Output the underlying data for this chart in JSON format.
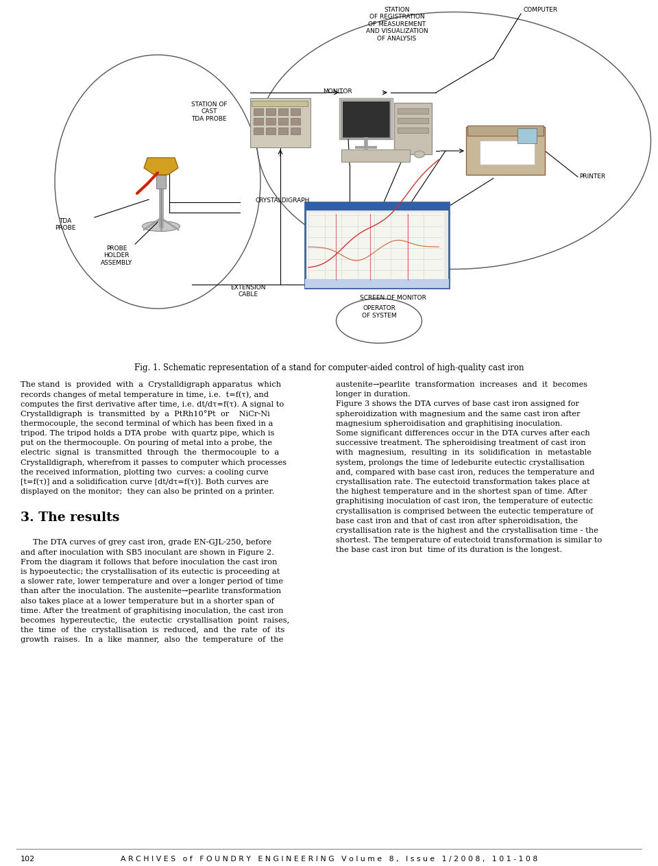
{
  "page_width": 9.6,
  "page_height": 12.63,
  "bg_color": "#ffffff",
  "fig_caption": "Fig. 1. Schematic representation of a stand for computer-aided control of high-quality cast iron",
  "left_col_text": [
    "The stand  is  provided  with  a  Crystalldigraph apparatus  which",
    "records changes of metal temperature in time, i.e.  t=f(τ), and",
    "computes the first derivative after time, i.e. dt/dτ=f(τ). A signal to",
    "Crystalldigraph  is  transmitted  by  a  PtRh10°Pt  or    NiCr-Ni",
    "thermocouple, the second terminal of which has been fixed in a",
    "tripod. The tripod holds a DTA probe  with quartz pipe, which is",
    "put on the thermocouple. On pouring of metal into a probe, the",
    "electric  signal  is  transmitted  through  the  thermocouple  to  a",
    "Crystalldigraph, wherefrom it passes to computer which processes",
    "the received information, plotting two  curves: a cooling curve",
    "[t=f(τ)] and a solidification curve [dt/dτ=f(τ)]. Both curves are",
    "displayed on the monitor;  they can also be printed on a printer."
  ],
  "section_header": "3. The results",
  "left_col_results": [
    "     The DTA curves of grey cast iron, grade EN-GJL-250, before",
    "and after inoculation with SB5 inoculant are shown in Figure 2.",
    "From the diagram it follows that before inoculation the cast iron",
    "is hypoeutectic; the crystallisation of its eutectic is proceeding at",
    "a slower rate, lower temperature and over a longer period of time",
    "than after the inoculation. The austenite→pearlite transformation",
    "also takes place at a lower temperature but in a shorter span of",
    "time. After the treatment of graphitising inoculation, the cast iron",
    "becomes  hypereutectic,  the  eutectic  crystallisation  point  raises,",
    "the  time  of  the  crystallisation  is  reduced,  and  the  rate  of  its",
    "growth  raises.  In  a  like  manner,  also  the  temperature  of  the"
  ],
  "right_col_text": [
    "austenite→pearlite  transformation  increases  and  it  becomes",
    "longer in duration.",
    "Figure 3 shows the DTA curves of base cast iron assigned for",
    "spheroidization with magnesium and the same cast iron after",
    "magnesium spheroidisation and graphitising inoculation.",
    "Some significant differences occur in the DTA curves after each",
    "successive treatment. The spheroidising treatment of cast iron",
    "with  magnesium,  resulting  in  its  solidification  in  metastable",
    "system, prolongs the time of ledeburite eutectic crystallisation",
    "and, compared with base cast iron, reduces the temperature and",
    "crystallisation rate. The eutectoid transformation takes place at",
    "the highest temperature and in the shortest span of time. After",
    "graphitising inoculation of cast iron, the temperature of eutectic",
    "crystallisation is comprised between the eutectic temperature of",
    "base cast iron and that of cast iron after spheroidisation, the",
    "crystallisation rate is the highest and the crystallisation time - the",
    "shortest. The temperature of eutectoid transformation is similar to",
    "the base cast iron but  time of its duration is the longest."
  ]
}
